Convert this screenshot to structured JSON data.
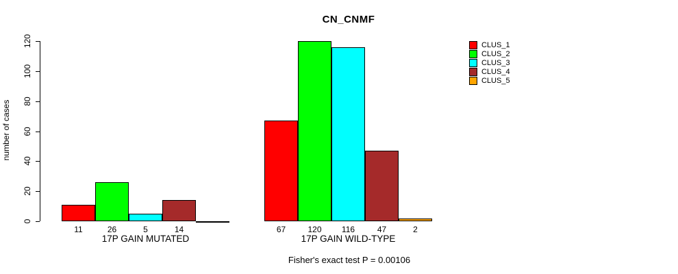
{
  "title": "CN_CNMF",
  "footer": "Fisher's exact test P = 0.00106",
  "ylabel": "number of cases",
  "chart_data": {
    "type": "bar",
    "title": "CN_CNMF",
    "xlabel": "",
    "ylabel": "number of cases",
    "ylim": [
      0,
      120
    ],
    "yticks": [
      0,
      20,
      40,
      60,
      80,
      100,
      120
    ],
    "grid": false,
    "legend_position": "right",
    "series": [
      {
        "name": "CLUS_1",
        "color": "#FF0000",
        "values": [
          11,
          67
        ]
      },
      {
        "name": "CLUS_2",
        "color": "#00FF00",
        "values": [
          26,
          120
        ]
      },
      {
        "name": "CLUS_3",
        "color": "#00FFFF",
        "values": [
          5,
          116
        ]
      },
      {
        "name": "CLUS_4",
        "color": "#A52A2A",
        "values": [
          14,
          47
        ]
      },
      {
        "name": "CLUS_5",
        "color": "#FFA500",
        "values": [
          0,
          2
        ]
      }
    ],
    "groups": [
      {
        "label": "17P GAIN MUTATED",
        "values": [
          11,
          26,
          5,
          14,
          0
        ],
        "bar_value_labels": [
          "11",
          "26",
          "5",
          "14",
          ""
        ]
      },
      {
        "label": "17P GAIN WILD-TYPE",
        "values": [
          67,
          120,
          116,
          47,
          2
        ],
        "bar_value_labels": [
          "67",
          "120",
          "116",
          "47",
          "2"
        ]
      }
    ],
    "annotation": "Fisher's exact test P = 0.00106"
  }
}
